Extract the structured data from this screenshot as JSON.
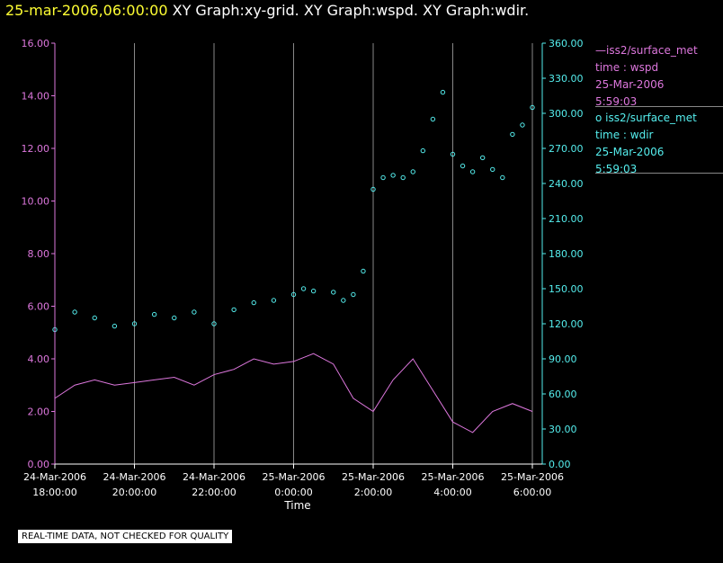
{
  "header": {
    "timestamp": "25-mar-2006,06:00:00",
    "graphs": "XY Graph:xy-grid.  XY Graph:wspd.  XY Graph:wdir."
  },
  "legend": {
    "wspd": {
      "dash": "—",
      "source": "iss2/surface_met",
      "var": "time : wspd",
      "date": "25-Mar-2006",
      "time": "5:59:03"
    },
    "wdir": {
      "marker": "o",
      "source": "iss2/surface_met",
      "var": "time : wdir",
      "date": "25-Mar-2006",
      "time": "5:59:03"
    }
  },
  "disclaimer": "REAL-TIME DATA, NOT CHECKED FOR QUALITY",
  "colors": {
    "wspd": "#dd77dd",
    "wdir": "#55eeee",
    "grid": "#888888",
    "axis": "#ffffff",
    "title_time": "#ffff33"
  },
  "chart_data": {
    "type": "line",
    "xlabel": "Time",
    "x_range_hours": [
      18,
      30
    ],
    "x_ticks": [
      {
        "h": 18,
        "date": "24-Mar-2006",
        "time": "18:00:00"
      },
      {
        "h": 20,
        "date": "24-Mar-2006",
        "time": "20:00:00"
      },
      {
        "h": 22,
        "date": "24-Mar-2006",
        "time": "22:00:00"
      },
      {
        "h": 24,
        "date": "25-Mar-2006",
        "time": "0:00:00"
      },
      {
        "h": 26,
        "date": "25-Mar-2006",
        "time": "2:00:00"
      },
      {
        "h": 28,
        "date": "25-Mar-2006",
        "time": "4:00:00"
      },
      {
        "h": 30,
        "date": "25-Mar-2006",
        "time": "6:00:00"
      }
    ],
    "y_left": {
      "range": [
        0,
        16
      ],
      "ticks": [
        "0.00",
        "2.00",
        "4.00",
        "6.00",
        "8.00",
        "10.00",
        "12.00",
        "14.00",
        "16.00"
      ]
    },
    "y_right": {
      "range": [
        0,
        360
      ],
      "ticks": [
        "0.00",
        "30.00",
        "60.00",
        "90.00",
        "120.00",
        "150.00",
        "180.00",
        "210.00",
        "240.00",
        "270.00",
        "300.00",
        "330.00",
        "360.00"
      ]
    },
    "grid": "vertical",
    "series": [
      {
        "name": "iss2/surface_met time : wspd",
        "axis": "left",
        "style": "line",
        "x": [
          18.0,
          18.5,
          19.0,
          19.5,
          20.0,
          20.5,
          21.0,
          21.5,
          22.0,
          22.5,
          23.0,
          23.5,
          24.0,
          24.5,
          25.0,
          25.5,
          26.0,
          26.5,
          27.0,
          27.5,
          28.0,
          28.5,
          29.0,
          29.5,
          30.0
        ],
        "y": [
          2.5,
          3.0,
          3.2,
          3.0,
          3.1,
          3.2,
          3.3,
          3.0,
          3.4,
          3.6,
          4.0,
          3.8,
          3.9,
          4.2,
          3.8,
          2.5,
          2.0,
          3.2,
          4.0,
          2.8,
          1.6,
          1.2,
          2.0,
          2.3,
          2.0
        ]
      },
      {
        "name": "iss2/surface_met time : wdir",
        "axis": "right",
        "style": "markers",
        "x": [
          18.0,
          18.5,
          19.0,
          19.5,
          20.0,
          20.5,
          21.0,
          21.5,
          22.0,
          22.5,
          23.0,
          23.5,
          24.0,
          24.25,
          24.5,
          25.0,
          25.25,
          25.5,
          25.75,
          26.0,
          26.25,
          26.5,
          26.75,
          27.0,
          27.25,
          27.5,
          27.75,
          28.0,
          28.25,
          28.5,
          28.75,
          29.0,
          29.25,
          29.5,
          29.75,
          30.0
        ],
        "y": [
          115,
          130,
          125,
          118,
          120,
          128,
          125,
          130,
          120,
          132,
          138,
          140,
          145,
          150,
          148,
          147,
          140,
          145,
          165,
          235,
          245,
          247,
          245,
          250,
          268,
          295,
          318,
          265,
          255,
          250,
          262,
          252,
          245,
          282,
          290,
          305
        ]
      }
    ]
  }
}
